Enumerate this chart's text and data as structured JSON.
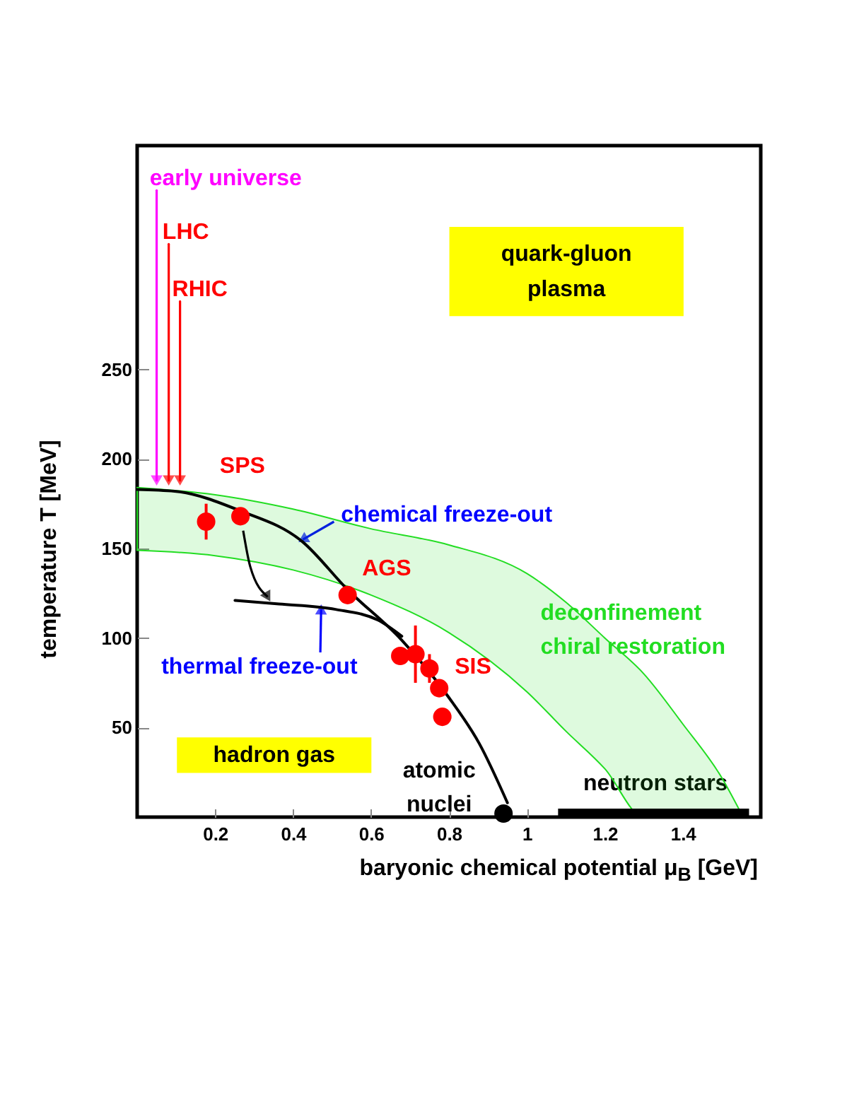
{
  "chart_data": {
    "type": "scatter",
    "xlabel": "baryonic chemical potential μ$_{B}$ [GeV]",
    "ylabel": "temperature T [MeV]",
    "xlim": [
      0,
      1.6
    ],
    "ylim": [
      0,
      375
    ],
    "xticks": [
      0.2,
      0.4,
      0.6,
      0.8,
      1,
      1.2,
      1.4
    ],
    "yticks": [
      50,
      100,
      150,
      200,
      250
    ],
    "series": [
      {
        "type": "line",
        "name": "deconfinement\nchiral restoration",
        "color": "#22dd22",
        "x": [
          0,
          0.2,
          0.4,
          0.6,
          0.8,
          1.0,
          1.1,
          1.2,
          1.3,
          1.4,
          1.5,
          1.55
        ],
        "values": [
          null,
          null,
          null,
          null,
          null,
          null,
          null,
          null,
          null,
          null,
          null,
          null
        ],
        "lower": [
          149,
          146,
          138,
          124,
          103,
          70,
          48,
          27,
          0,
          0,
          0,
          0
        ],
        "upper": [
          184,
          180,
          172,
          161,
          152,
          136,
          120,
          100,
          80,
          52,
          22,
          2
        ]
      },
      {
        "type": "line",
        "color": "#000000",
        "x": [
          0,
          0.096,
          0.265,
          0.423,
          0.54,
          0.678,
          0.799,
          0.878,
          0.95
        ],
        "values": [
          183,
          182,
          171,
          154,
          127,
          99,
          67,
          41,
          8
        ]
      },
      {
        "type": "line",
        "color": "#000000",
        "x": [
          0.251,
          0.364,
          0.509,
          0.618,
          0.679
        ],
        "values": [
          121,
          119,
          116,
          110,
          101
        ]
      },
      {
        "color": "#ff0000",
        "marker": "circle",
        "x": [
          0.177,
          0.265
        ],
        "values": [
          165,
          168
        ],
        "errors": [
          10,
          null
        ]
      },
      {
        "name": "AGS",
        "color": "#ff0000",
        "marker": "circle",
        "x": [
          0.54
        ],
        "values": [
          124
        ]
      },
      {
        "name": "SIS",
        "color": "#ff0000",
        "marker": "circle",
        "x": [
          0.675,
          0.714,
          0.75,
          0.775,
          0.783
        ],
        "values": [
          90,
          91,
          83,
          72,
          56
        ],
        "errors": [
          null,
          16,
          8,
          null,
          null
        ]
      },
      {
        "color": "#000000",
        "marker": "circle",
        "x": [
          0.94
        ],
        "values": [
          2
        ]
      },
      {
        "type": "line",
        "color": "#000000",
        "x": [
          1.08,
          1.57
        ],
        "values": [
          2,
          2
        ]
      },
      {
        "type": "line",
        "name": "early universe",
        "color": "#ff00ff",
        "x": [
          0.05,
          0.05
        ],
        "values": [
          350,
          188
        ]
      },
      {
        "type": "line",
        "name": "LHC",
        "color": "#ff0000",
        "x": [
          0.081,
          0.081
        ],
        "values": [
          320,
          188
        ]
      },
      {
        "type": "line",
        "name": "RHIC",
        "color": "#ff0000",
        "x": [
          0.11,
          0.11
        ],
        "values": [
          288,
          188
        ]
      }
    ],
    "annotations": [
      "hadron gas",
      "quark-gluon\nplasma",
      {
        "text": "chemical freeze-out",
        "x": 0.425,
        "y": 155
      },
      {
        "text": "thermal freeze-out",
        "x": 0.472,
        "y": 116
      },
      "SPS",
      "atomic\nnuclei",
      "neutron stars"
    ]
  }
}
